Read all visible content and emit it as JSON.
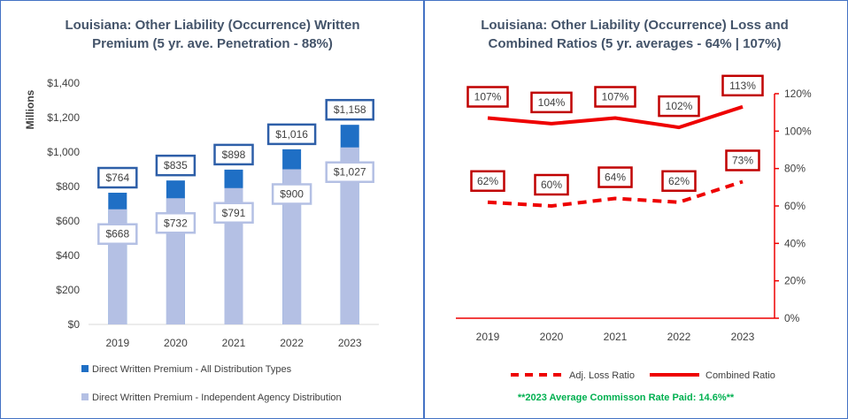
{
  "chart_data": [
    {
      "type": "bar",
      "title_lines": [
        "Louisiana: Other Liability (Occurrence) Written",
        "Premium (5 yr. ave. Penetration - 88%)"
      ],
      "ylabel": "Millions",
      "categories": [
        "2019",
        "2020",
        "2021",
        "2022",
        "2023"
      ],
      "ylim": [
        0,
        1400
      ],
      "yticks": [
        0,
        200,
        400,
        600,
        800,
        1000,
        1200,
        1400
      ],
      "ytick_labels": [
        "$0",
        "$200",
        "$400",
        "$600",
        "$800",
        "$1,000",
        "$1,200",
        "$1,400"
      ],
      "series": [
        {
          "name": "Direct Written Premium - All Distribution Types",
          "values": [
            764,
            835,
            898,
            1016,
            1158
          ],
          "labels": [
            "$764",
            "$835",
            "$898",
            "$1,016",
            "$1,158"
          ],
          "color": "#1f6fc5"
        },
        {
          "name": "Direct Written Premium - Independent Agency Distribution",
          "values": [
            668,
            732,
            791,
            900,
            1027
          ],
          "labels": [
            "$668",
            "$732",
            "$791",
            "$900",
            "$1,027"
          ],
          "color": "#b4c0e4"
        }
      ],
      "legend": "bottom"
    },
    {
      "type": "line",
      "title_lines": [
        "Louisiana: Other Liability (Occurrence) Loss and",
        "Combined Ratios (5 yr. averages - 64% | 107%)"
      ],
      "categories": [
        "2019",
        "2020",
        "2021",
        "2022",
        "2023"
      ],
      "ylim": [
        0,
        120
      ],
      "yticks": [
        0,
        20,
        40,
        60,
        80,
        100,
        120
      ],
      "ytick_labels": [
        "0%",
        "20%",
        "40%",
        "60%",
        "80%",
        "100%",
        "120%"
      ],
      "y_axis_side": "right",
      "series": [
        {
          "name": "Adj. Loss Ratio",
          "values": [
            62,
            60,
            64,
            62,
            73
          ],
          "labels": [
            "62%",
            "60%",
            "64%",
            "62%",
            "73%"
          ],
          "style": "dashed",
          "color": "#ee0000"
        },
        {
          "name": "Combined Ratio",
          "values": [
            107,
            104,
            107,
            102,
            113
          ],
          "labels": [
            "107%",
            "104%",
            "107%",
            "102%",
            "113%"
          ],
          "style": "solid",
          "color": "#ee0000"
        }
      ],
      "legend": "bottom",
      "note": "**2023 Average Commisson Rate Paid: 14.6%**"
    }
  ]
}
